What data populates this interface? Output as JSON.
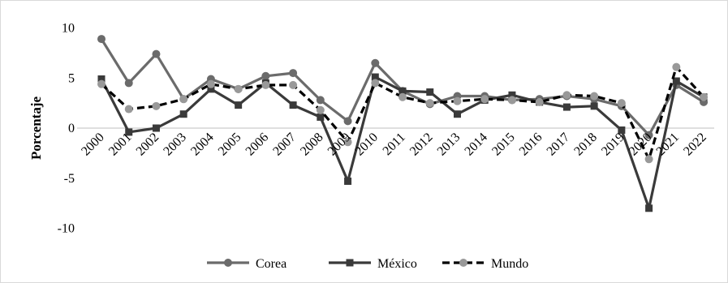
{
  "chart_data": {
    "type": "line",
    "ylabel": "Porcentaje",
    "xlabel": "",
    "ylim": [
      -10,
      10
    ],
    "yticks": [
      10,
      5,
      0,
      -5,
      -10
    ],
    "grid": false,
    "legend_position": "bottom",
    "categories": [
      "2000",
      "2001",
      "2002",
      "2003",
      "2004",
      "2005",
      "2006",
      "2007",
      "2008",
      "2009",
      "2010",
      "2011",
      "2012",
      "2013",
      "2014",
      "2015",
      "2016",
      "2017",
      "2018",
      "2019",
      "2020",
      "2021",
      "2022"
    ],
    "series": [
      {
        "name": "Corea",
        "color": "#6b6b6b",
        "line_style": "solid",
        "marker": "circle",
        "values": [
          8.9,
          4.5,
          7.4,
          2.9,
          4.9,
          3.9,
          5.2,
          5.5,
          2.8,
          0.7,
          6.5,
          3.7,
          2.4,
          3.2,
          3.2,
          2.8,
          2.9,
          3.2,
          2.9,
          2.2,
          -0.7,
          4.3,
          2.6
        ]
      },
      {
        "name": "México",
        "color": "#3a3a3a",
        "line_style": "solid",
        "marker": "square",
        "values": [
          4.9,
          -0.4,
          0.0,
          1.4,
          3.9,
          2.3,
          4.5,
          2.3,
          1.1,
          -5.3,
          5.1,
          3.7,
          3.6,
          1.4,
          2.8,
          3.3,
          2.6,
          2.1,
          2.2,
          -0.2,
          -8.0,
          4.7,
          3.1
        ]
      },
      {
        "name": "Mundo",
        "color": "#000000",
        "marker_color": "#999999",
        "line_style": "dashed",
        "marker": "circle",
        "values": [
          4.4,
          1.9,
          2.2,
          2.9,
          4.4,
          3.9,
          4.3,
          4.3,
          1.8,
          -1.4,
          4.5,
          3.1,
          2.5,
          2.7,
          2.9,
          2.8,
          2.6,
          3.3,
          3.2,
          2.5,
          -3.1,
          6.1,
          3.1
        ]
      }
    ]
  }
}
